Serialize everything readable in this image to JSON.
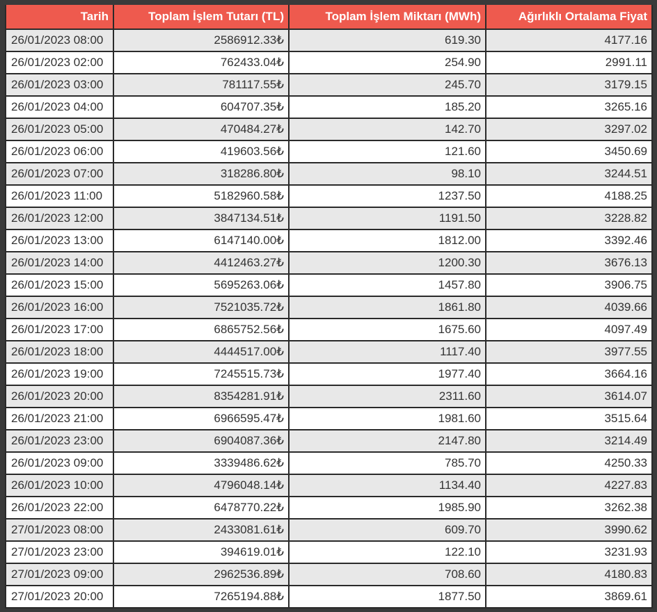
{
  "table": {
    "columns": [
      "Tarih",
      "Toplam İşlem Tutarı (TL)",
      "Toplam İşlem Miktarı (MWh)",
      "Ağırlıklı Ortalama Fiyat"
    ],
    "rows": [
      [
        "26/01/2023 08:00",
        "2586912.33₺",
        "619.30",
        "4177.16"
      ],
      [
        "26/01/2023 02:00",
        "762433.04₺",
        "254.90",
        "2991.11"
      ],
      [
        "26/01/2023 03:00",
        "781117.55₺",
        "245.70",
        "3179.15"
      ],
      [
        "26/01/2023 04:00",
        "604707.35₺",
        "185.20",
        "3265.16"
      ],
      [
        "26/01/2023 05:00",
        "470484.27₺",
        "142.70",
        "3297.02"
      ],
      [
        "26/01/2023 06:00",
        "419603.56₺",
        "121.60",
        "3450.69"
      ],
      [
        "26/01/2023 07:00",
        "318286.80₺",
        "98.10",
        "3244.51"
      ],
      [
        "26/01/2023 11:00",
        "5182960.58₺",
        "1237.50",
        "4188.25"
      ],
      [
        "26/01/2023 12:00",
        "3847134.51₺",
        "1191.50",
        "3228.82"
      ],
      [
        "26/01/2023 13:00",
        "6147140.00₺",
        "1812.00",
        "3392.46"
      ],
      [
        "26/01/2023 14:00",
        "4412463.27₺",
        "1200.30",
        "3676.13"
      ],
      [
        "26/01/2023 15:00",
        "5695263.06₺",
        "1457.80",
        "3906.75"
      ],
      [
        "26/01/2023 16:00",
        "7521035.72₺",
        "1861.80",
        "4039.66"
      ],
      [
        "26/01/2023 17:00",
        "6865752.56₺",
        "1675.60",
        "4097.49"
      ],
      [
        "26/01/2023 18:00",
        "4444517.00₺",
        "1117.40",
        "3977.55"
      ],
      [
        "26/01/2023 19:00",
        "7245515.73₺",
        "1977.40",
        "3664.16"
      ],
      [
        "26/01/2023 20:00",
        "8354281.91₺",
        "2311.60",
        "3614.07"
      ],
      [
        "26/01/2023 21:00",
        "6966595.47₺",
        "1981.60",
        "3515.64"
      ],
      [
        "26/01/2023 23:00",
        "6904087.36₺",
        "2147.80",
        "3214.49"
      ],
      [
        "26/01/2023 09:00",
        "3339486.62₺",
        "785.70",
        "4250.33"
      ],
      [
        "26/01/2023 10:00",
        "4796048.14₺",
        "1134.40",
        "4227.83"
      ],
      [
        "26/01/2023 22:00",
        "6478770.22₺",
        "1985.90",
        "3262.38"
      ],
      [
        "27/01/2023 08:00",
        "2433081.61₺",
        "609.70",
        "3990.62"
      ],
      [
        "27/01/2023 23:00",
        "394619.01₺",
        "122.10",
        "3231.93"
      ],
      [
        "27/01/2023 09:00",
        "2962536.89₺",
        "708.60",
        "4180.83"
      ],
      [
        "27/01/2023 20:00",
        "7265194.88₺",
        "1877.50",
        "3869.61"
      ]
    ]
  },
  "colors": {
    "header_bg": "#ee5a4e",
    "header_text": "#ffffff",
    "row_odd_bg": "#e8e8e8",
    "row_even_bg": "#ffffff",
    "frame_bg": "#3a3a3a"
  }
}
